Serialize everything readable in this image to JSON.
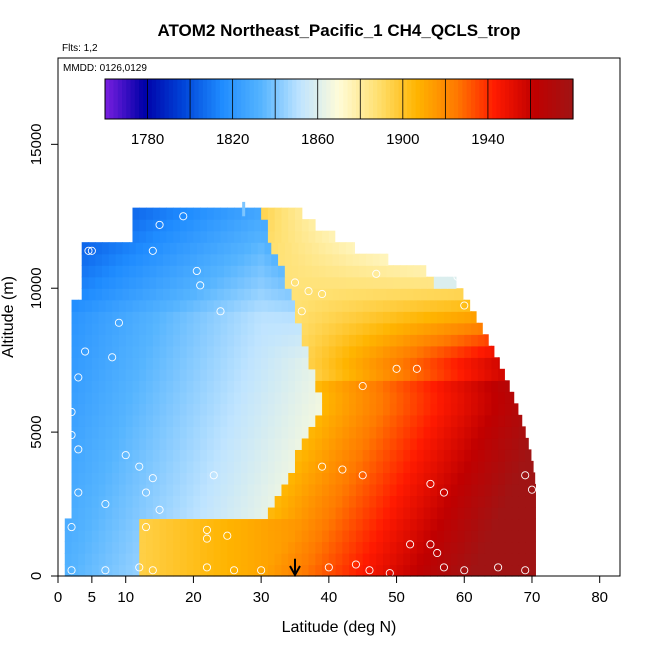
{
  "chart_data": {
    "type": "heatmap",
    "title": "ATOM2 Northeast_Pacific_1 CH4_QCLS_trop",
    "flights_label": "Flts: 1,2",
    "dates_label": "MMDD: 0126,0129",
    "xlabel": "Latitude (deg N)",
    "ylabel": "Altitude (m)",
    "xlim": [
      0,
      83
    ],
    "ylim": [
      0,
      18000
    ],
    "x_ticks": [
      0,
      5,
      10,
      20,
      30,
      40,
      50,
      60,
      70,
      80
    ],
    "y_ticks": [
      0,
      5000,
      10000,
      15000
    ],
    "colorbar": {
      "min": 1760,
      "max": 1980,
      "ticks": [
        1780,
        1820,
        1860,
        1900,
        1940
      ],
      "colors": [
        "#7a1fe0",
        "#0000a8",
        "#0044d8",
        "#1f8cff",
        "#55b4ff",
        "#bfe4ff",
        "#fffcd8",
        "#ffe070",
        "#ffb400",
        "#ff7a00",
        "#ff1a00",
        "#c00000",
        "#a01414"
      ]
    },
    "grid": false,
    "legend": "colorbar-top",
    "marker": {
      "latitude": 35,
      "label": "arrow"
    },
    "observations": [
      [
        4.5,
        11300
      ],
      [
        5,
        11300
      ],
      [
        15,
        12200
      ],
      [
        18.5,
        12500
      ],
      [
        14,
        11300
      ],
      [
        20.5,
        10600
      ],
      [
        24,
        9200
      ],
      [
        21,
        10100
      ],
      [
        35,
        10200
      ],
      [
        37,
        9900
      ],
      [
        36,
        9200
      ],
      [
        39,
        9800
      ],
      [
        47,
        10500
      ],
      [
        59,
        10400
      ],
      [
        60,
        9400
      ],
      [
        4,
        7800
      ],
      [
        8,
        7600
      ],
      [
        9,
        8800
      ],
      [
        45,
        6600
      ],
      [
        50,
        7200
      ],
      [
        53,
        7200
      ],
      [
        3,
        6900
      ],
      [
        2,
        5700
      ],
      [
        2,
        4900
      ],
      [
        3,
        4400
      ],
      [
        10,
        4200
      ],
      [
        12,
        3800
      ],
      [
        23,
        3500
      ],
      [
        14,
        3400
      ],
      [
        39,
        3800
      ],
      [
        42,
        3700
      ],
      [
        45,
        3500
      ],
      [
        55,
        3200
      ],
      [
        57,
        2900
      ],
      [
        69,
        3500
      ],
      [
        70,
        3000
      ],
      [
        3,
        2900
      ],
      [
        7,
        2500
      ],
      [
        13,
        2900
      ],
      [
        15,
        2300
      ],
      [
        22,
        1600
      ],
      [
        25,
        1400
      ],
      [
        22,
        1300
      ],
      [
        13,
        1700
      ],
      [
        2,
        1700
      ],
      [
        52,
        1100
      ],
      [
        55,
        1100
      ],
      [
        56,
        800
      ],
      [
        44,
        400
      ],
      [
        40,
        300
      ],
      [
        26,
        200
      ],
      [
        22,
        300
      ],
      [
        14,
        200
      ],
      [
        12,
        300
      ],
      [
        30,
        200
      ],
      [
        7,
        200
      ],
      [
        2,
        200
      ],
      [
        57,
        300
      ],
      [
        60,
        200
      ],
      [
        65,
        300
      ],
      [
        69,
        200
      ],
      [
        49,
        100
      ],
      [
        46,
        200
      ]
    ]
  }
}
